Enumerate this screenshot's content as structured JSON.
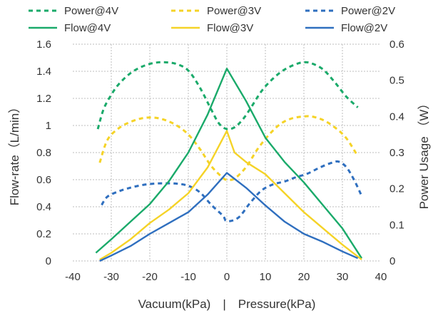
{
  "chart_data": {
    "type": "line",
    "title": "",
    "xlabel": "Vacuum(kPa)　|　Pressure(kPa)",
    "ylabel_left": "Flow-rate（L/min）",
    "ylabel_right": "Power Usage （W）",
    "xlim": [
      -40,
      40
    ],
    "x_ticks": [
      -40,
      -30,
      -20,
      -10,
      0,
      10,
      20,
      30,
      40
    ],
    "ylim_left": [
      0,
      1.6
    ],
    "y_left_ticks": [
      0,
      0.2,
      0.4,
      0.6,
      0.8,
      1,
      1.2,
      1.4,
      1.6
    ],
    "ylim_right": [
      0,
      0.6
    ],
    "y_right_ticks": [
      0,
      0.1,
      0.2,
      0.3,
      0.4,
      0.5,
      0.6
    ],
    "grid": true,
    "legend_position": "top",
    "series": [
      {
        "name": "Power@4V",
        "axis": "right",
        "style": "dashed",
        "color": "#1aaa6a",
        "x": [
          -33.5,
          -32,
          -30,
          -28,
          -25,
          -22,
          -19,
          -16,
          -13,
          -10,
          -7,
          -4,
          -2,
          0,
          2,
          4,
          6,
          9,
          12,
          15,
          18,
          20,
          22,
          25,
          28,
          31,
          34
        ],
        "y": [
          0.365,
          0.42,
          0.46,
          0.49,
          0.52,
          0.538,
          0.548,
          0.55,
          0.545,
          0.527,
          0.48,
          0.418,
          0.38,
          0.365,
          0.37,
          0.39,
          0.42,
          0.47,
          0.505,
          0.53,
          0.545,
          0.55,
          0.547,
          0.53,
          0.495,
          0.455,
          0.425
        ]
      },
      {
        "name": "Power@3V",
        "axis": "right",
        "style": "dashed",
        "color": "#f5d327",
        "x": [
          -33,
          -31,
          -28,
          -25,
          -22,
          -19,
          -16,
          -13,
          -10,
          -7,
          -4,
          -1,
          0,
          2,
          5,
          8,
          11,
          14,
          17,
          20,
          22,
          25,
          28,
          31,
          34
        ],
        "y": [
          0.272,
          0.335,
          0.368,
          0.385,
          0.395,
          0.397,
          0.39,
          0.375,
          0.35,
          0.31,
          0.262,
          0.23,
          0.225,
          0.228,
          0.26,
          0.31,
          0.35,
          0.38,
          0.395,
          0.4,
          0.4,
          0.39,
          0.37,
          0.34,
          0.29
        ]
      },
      {
        "name": "Power@2V",
        "axis": "right",
        "style": "dashed",
        "color": "#2f6fbf",
        "x": [
          -32.5,
          -31,
          -28,
          -25,
          -22,
          -19,
          -16,
          -13,
          -10,
          -7,
          -4,
          -1,
          0,
          3,
          6,
          9,
          12,
          15,
          18,
          21,
          24,
          27,
          29,
          31,
          33,
          35
        ],
        "y": [
          0.155,
          0.178,
          0.193,
          0.203,
          0.21,
          0.214,
          0.215,
          0.214,
          0.208,
          0.19,
          0.155,
          0.125,
          0.11,
          0.12,
          0.16,
          0.195,
          0.212,
          0.22,
          0.232,
          0.242,
          0.258,
          0.271,
          0.275,
          0.26,
          0.225,
          0.18
        ]
      },
      {
        "name": "Flow@4V",
        "axis": "left",
        "style": "solid",
        "color": "#1aaa6a",
        "x": [
          -34,
          -30,
          -25,
          -20,
          -15,
          -10,
          -5,
          0,
          5,
          10,
          15,
          20,
          25,
          30,
          35
        ],
        "y": [
          0.06,
          0.16,
          0.29,
          0.42,
          0.59,
          0.8,
          1.08,
          1.42,
          1.18,
          0.91,
          0.73,
          0.58,
          0.41,
          0.24,
          0.02
        ]
      },
      {
        "name": "Flow@3V",
        "axis": "left",
        "style": "solid",
        "color": "#f5d327",
        "x": [
          -33,
          -30,
          -25,
          -20,
          -15,
          -10,
          -5,
          0,
          2,
          5,
          10,
          15,
          20,
          25,
          30,
          35
        ],
        "y": [
          0.01,
          0.06,
          0.16,
          0.28,
          0.38,
          0.5,
          0.69,
          0.96,
          0.8,
          0.73,
          0.64,
          0.5,
          0.36,
          0.24,
          0.12,
          0.01
        ]
      },
      {
        "name": "Flow@2V",
        "axis": "left",
        "style": "solid",
        "color": "#2f6fbf",
        "x": [
          -33,
          -30,
          -25,
          -20,
          -15,
          -10,
          -5,
          0,
          5,
          10,
          15,
          20,
          25,
          30,
          34
        ],
        "y": [
          0.0,
          0.04,
          0.11,
          0.2,
          0.28,
          0.36,
          0.49,
          0.65,
          0.54,
          0.41,
          0.29,
          0.2,
          0.14,
          0.07,
          0.02
        ]
      }
    ]
  }
}
